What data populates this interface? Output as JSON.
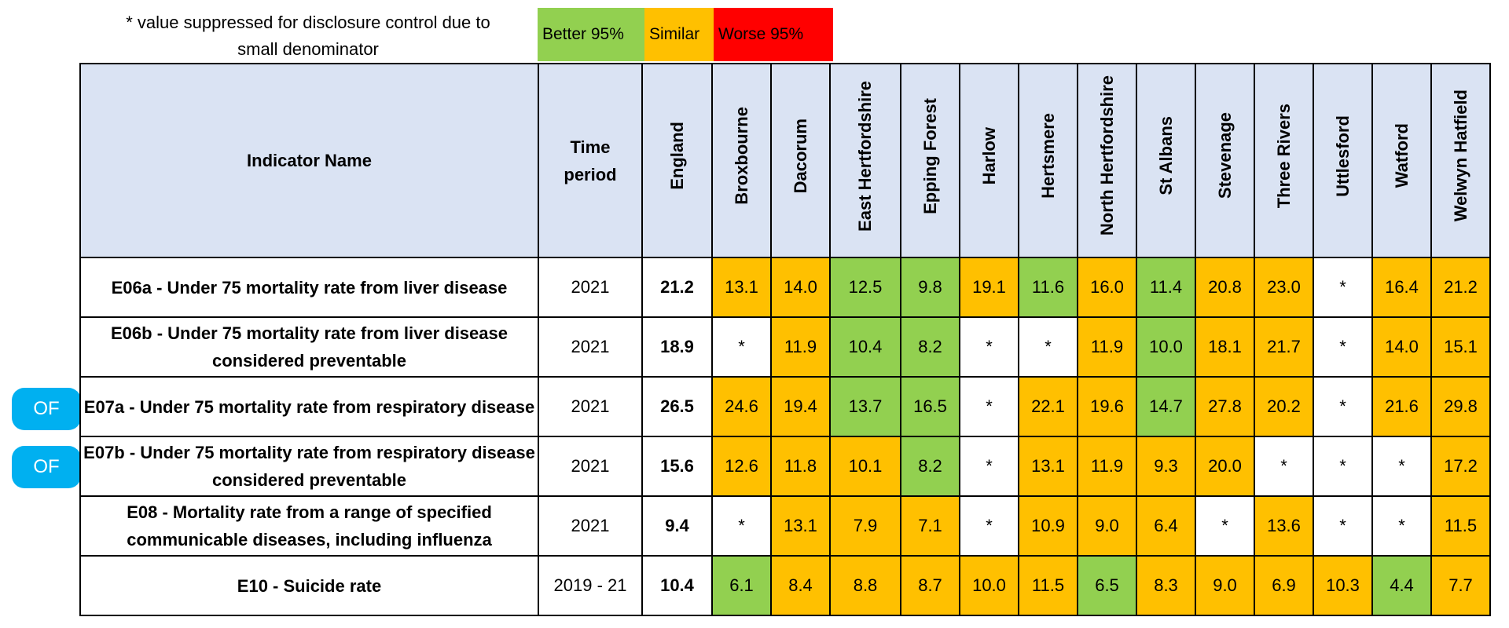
{
  "footnote": "* value suppressed for disclosure control due to small denominator",
  "legend": {
    "better": "Better 95%",
    "similar": "Similar",
    "worse": "Worse 95%",
    "colors": {
      "better": "#92d050",
      "similar": "#ffc000",
      "worse": "#ff0000",
      "header": "#dae3f3",
      "badge": "#00b0f0"
    }
  },
  "headers": {
    "indicator": "Indicator Name",
    "period": "Time period",
    "areas": [
      "England",
      "Broxbourne",
      "Dacorum",
      "East Hertfordshire",
      "Epping Forest",
      "Harlow",
      "Hertsmere",
      "North Hertfordshire",
      "St Albans",
      "Stevenage",
      "Three Rivers",
      "Uttlesford",
      "Watford",
      "Welwyn Hatfield"
    ]
  },
  "badges": [
    "OF",
    "OF"
  ],
  "rows": [
    {
      "indicator": "E06a - Under 75 mortality rate from liver disease",
      "period": "2021",
      "england": "21.2",
      "values": [
        {
          "v": "13.1",
          "s": "similar"
        },
        {
          "v": "14.0",
          "s": "similar"
        },
        {
          "v": "12.5",
          "s": "better"
        },
        {
          "v": "9.8",
          "s": "better"
        },
        {
          "v": "19.1",
          "s": "similar"
        },
        {
          "v": "11.6",
          "s": "better"
        },
        {
          "v": "16.0",
          "s": "similar"
        },
        {
          "v": "11.4",
          "s": "better"
        },
        {
          "v": "20.8",
          "s": "similar"
        },
        {
          "v": "23.0",
          "s": "similar"
        },
        {
          "v": "*",
          "s": "none"
        },
        {
          "v": "16.4",
          "s": "similar"
        },
        {
          "v": "21.2",
          "s": "similar"
        }
      ]
    },
    {
      "indicator": "E06b - Under 75 mortality rate from liver disease considered preventable",
      "period": "2021",
      "england": "18.9",
      "values": [
        {
          "v": "*",
          "s": "none"
        },
        {
          "v": "11.9",
          "s": "similar"
        },
        {
          "v": "10.4",
          "s": "better"
        },
        {
          "v": "8.2",
          "s": "better"
        },
        {
          "v": "*",
          "s": "none"
        },
        {
          "v": "*",
          "s": "none"
        },
        {
          "v": "11.9",
          "s": "similar"
        },
        {
          "v": "10.0",
          "s": "better"
        },
        {
          "v": "18.1",
          "s": "similar"
        },
        {
          "v": "21.7",
          "s": "similar"
        },
        {
          "v": "*",
          "s": "none"
        },
        {
          "v": "14.0",
          "s": "similar"
        },
        {
          "v": "15.1",
          "s": "similar"
        }
      ]
    },
    {
      "indicator": "E07a - Under 75 mortality rate from respiratory disease",
      "period": "2021",
      "england": "26.5",
      "values": [
        {
          "v": "24.6",
          "s": "similar"
        },
        {
          "v": "19.4",
          "s": "similar"
        },
        {
          "v": "13.7",
          "s": "better"
        },
        {
          "v": "16.5",
          "s": "better"
        },
        {
          "v": "*",
          "s": "none"
        },
        {
          "v": "22.1",
          "s": "similar"
        },
        {
          "v": "19.6",
          "s": "similar"
        },
        {
          "v": "14.7",
          "s": "better"
        },
        {
          "v": "27.8",
          "s": "similar"
        },
        {
          "v": "20.2",
          "s": "similar"
        },
        {
          "v": "*",
          "s": "none"
        },
        {
          "v": "21.6",
          "s": "similar"
        },
        {
          "v": "29.8",
          "s": "similar"
        }
      ]
    },
    {
      "indicator": "E07b - Under 75 mortality rate from respiratory disease considered preventable",
      "period": "2021",
      "england": "15.6",
      "values": [
        {
          "v": "12.6",
          "s": "similar"
        },
        {
          "v": "11.8",
          "s": "similar"
        },
        {
          "v": "10.1",
          "s": "similar"
        },
        {
          "v": "8.2",
          "s": "better"
        },
        {
          "v": "*",
          "s": "none"
        },
        {
          "v": "13.1",
          "s": "similar"
        },
        {
          "v": "11.9",
          "s": "similar"
        },
        {
          "v": "9.3",
          "s": "similar"
        },
        {
          "v": "20.0",
          "s": "similar"
        },
        {
          "v": "*",
          "s": "none"
        },
        {
          "v": "*",
          "s": "none"
        },
        {
          "v": "*",
          "s": "none"
        },
        {
          "v": "17.2",
          "s": "similar"
        }
      ]
    },
    {
      "indicator": "E08 - Mortality rate from a range of specified communicable diseases, including influenza",
      "period": "2021",
      "england": "9.4",
      "values": [
        {
          "v": "*",
          "s": "none"
        },
        {
          "v": "13.1",
          "s": "similar"
        },
        {
          "v": "7.9",
          "s": "similar"
        },
        {
          "v": "7.1",
          "s": "similar"
        },
        {
          "v": "*",
          "s": "none"
        },
        {
          "v": "10.9",
          "s": "similar"
        },
        {
          "v": "9.0",
          "s": "similar"
        },
        {
          "v": "6.4",
          "s": "similar"
        },
        {
          "v": "*",
          "s": "none"
        },
        {
          "v": "13.6",
          "s": "similar"
        },
        {
          "v": "*",
          "s": "none"
        },
        {
          "v": "*",
          "s": "none"
        },
        {
          "v": "11.5",
          "s": "similar"
        }
      ]
    },
    {
      "indicator": "E10 - Suicide rate",
      "period": "2019 - 21",
      "england": "10.4",
      "values": [
        {
          "v": "6.1",
          "s": "better"
        },
        {
          "v": "8.4",
          "s": "similar"
        },
        {
          "v": "8.8",
          "s": "similar"
        },
        {
          "v": "8.7",
          "s": "similar"
        },
        {
          "v": "10.0",
          "s": "similar"
        },
        {
          "v": "11.5",
          "s": "similar"
        },
        {
          "v": "6.5",
          "s": "better"
        },
        {
          "v": "8.3",
          "s": "similar"
        },
        {
          "v": "9.0",
          "s": "similar"
        },
        {
          "v": "6.9",
          "s": "similar"
        },
        {
          "v": "10.3",
          "s": "similar"
        },
        {
          "v": "4.4",
          "s": "better"
        },
        {
          "v": "7.7",
          "s": "similar"
        }
      ]
    }
  ]
}
